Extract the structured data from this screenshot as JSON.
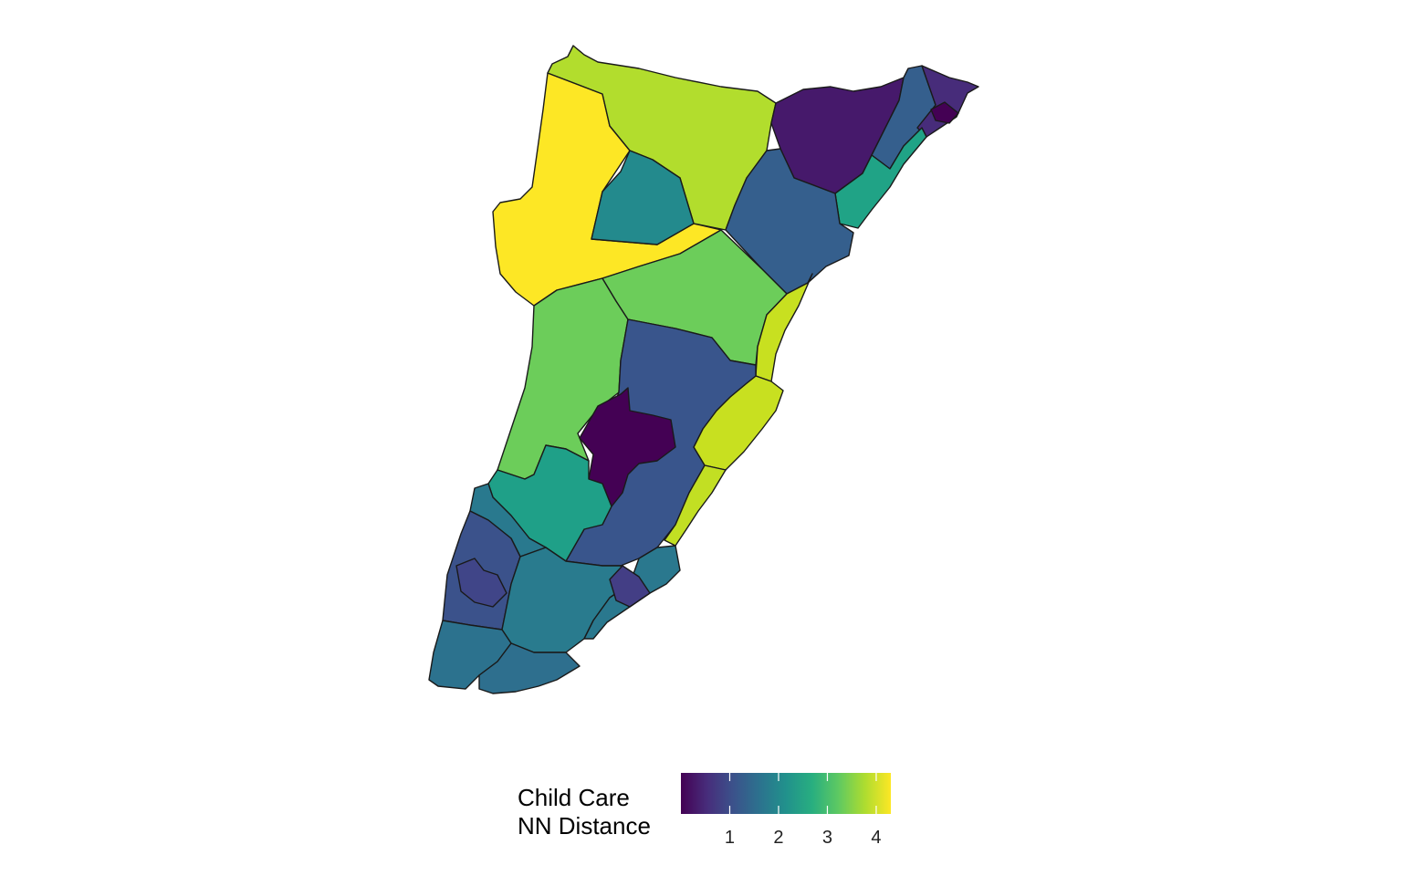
{
  "map": {
    "region": "Cape May County tracts (choropleth)",
    "palette": [
      "#440154",
      "#3b528b",
      "#21918c",
      "#5ec962",
      "#fde725"
    ],
    "regions": [
      {
        "name": "north-west-a",
        "value": 4.3,
        "color": "#fde725"
      },
      {
        "name": "north-west-b",
        "value": 3.9,
        "color": "#b2dd2d"
      },
      {
        "name": "north-inner",
        "value": 2.7,
        "color": "#238a8d"
      },
      {
        "name": "north-east-top",
        "value": 0.6,
        "color": "#46196b"
      },
      {
        "name": "north-east-mid",
        "value": 1.7,
        "color": "#355f8d"
      },
      {
        "name": "north-east-tip",
        "value": 1.1,
        "color": "#472c7a"
      },
      {
        "name": "north-east-dark",
        "value": 0.3,
        "color": "#440154"
      },
      {
        "name": "north-coast-strip",
        "value": 2.8,
        "color": "#20a386"
      },
      {
        "name": "middle-east",
        "value": 1.9,
        "color": "#355f8d"
      },
      {
        "name": "middle-west",
        "value": 3.6,
        "color": "#6ccd5a"
      },
      {
        "name": "middle-center",
        "value": 3.6,
        "color": "#6ccd5a"
      },
      {
        "name": "middle-coast",
        "value": 4.0,
        "color": "#c8e020"
      },
      {
        "name": "middle-inner-dark",
        "value": 0.2,
        "color": "#440154"
      },
      {
        "name": "middle-south-blue",
        "value": 1.8,
        "color": "#39558c"
      },
      {
        "name": "middle-south-teal",
        "value": 2.8,
        "color": "#1fa088"
      },
      {
        "name": "south-coast",
        "value": 4.1,
        "color": "#c2df23"
      },
      {
        "name": "south-west-a",
        "value": 2.5,
        "color": "#29798e"
      },
      {
        "name": "south-west-b",
        "value": 1.6,
        "color": "#3b528b"
      },
      {
        "name": "south-inner",
        "value": 1.3,
        "color": "#404588"
      },
      {
        "name": "south-center",
        "value": 2.5,
        "color": "#297b8e"
      },
      {
        "name": "south-tip-a",
        "value": 2.1,
        "color": "#2c728e"
      },
      {
        "name": "south-tip-b",
        "value": 2.0,
        "color": "#2e6f8e"
      },
      {
        "name": "south-east-coast",
        "value": 2.3,
        "color": "#2a788e"
      },
      {
        "name": "south-east-dark",
        "value": 1.2,
        "color": "#433e85"
      }
    ]
  },
  "legend": {
    "title_line1": "Child Care",
    "title_line2": "NN Distance",
    "min": 0.0,
    "max": 4.3,
    "ticks": [
      1,
      2,
      3,
      4
    ],
    "tick_labels": [
      "1",
      "2",
      "3",
      "4"
    ],
    "stops": [
      "#440154",
      "#472d7b",
      "#3b528b",
      "#2c728e",
      "#21918c",
      "#28ae80",
      "#5ec962",
      "#addc30",
      "#fde725"
    ]
  }
}
